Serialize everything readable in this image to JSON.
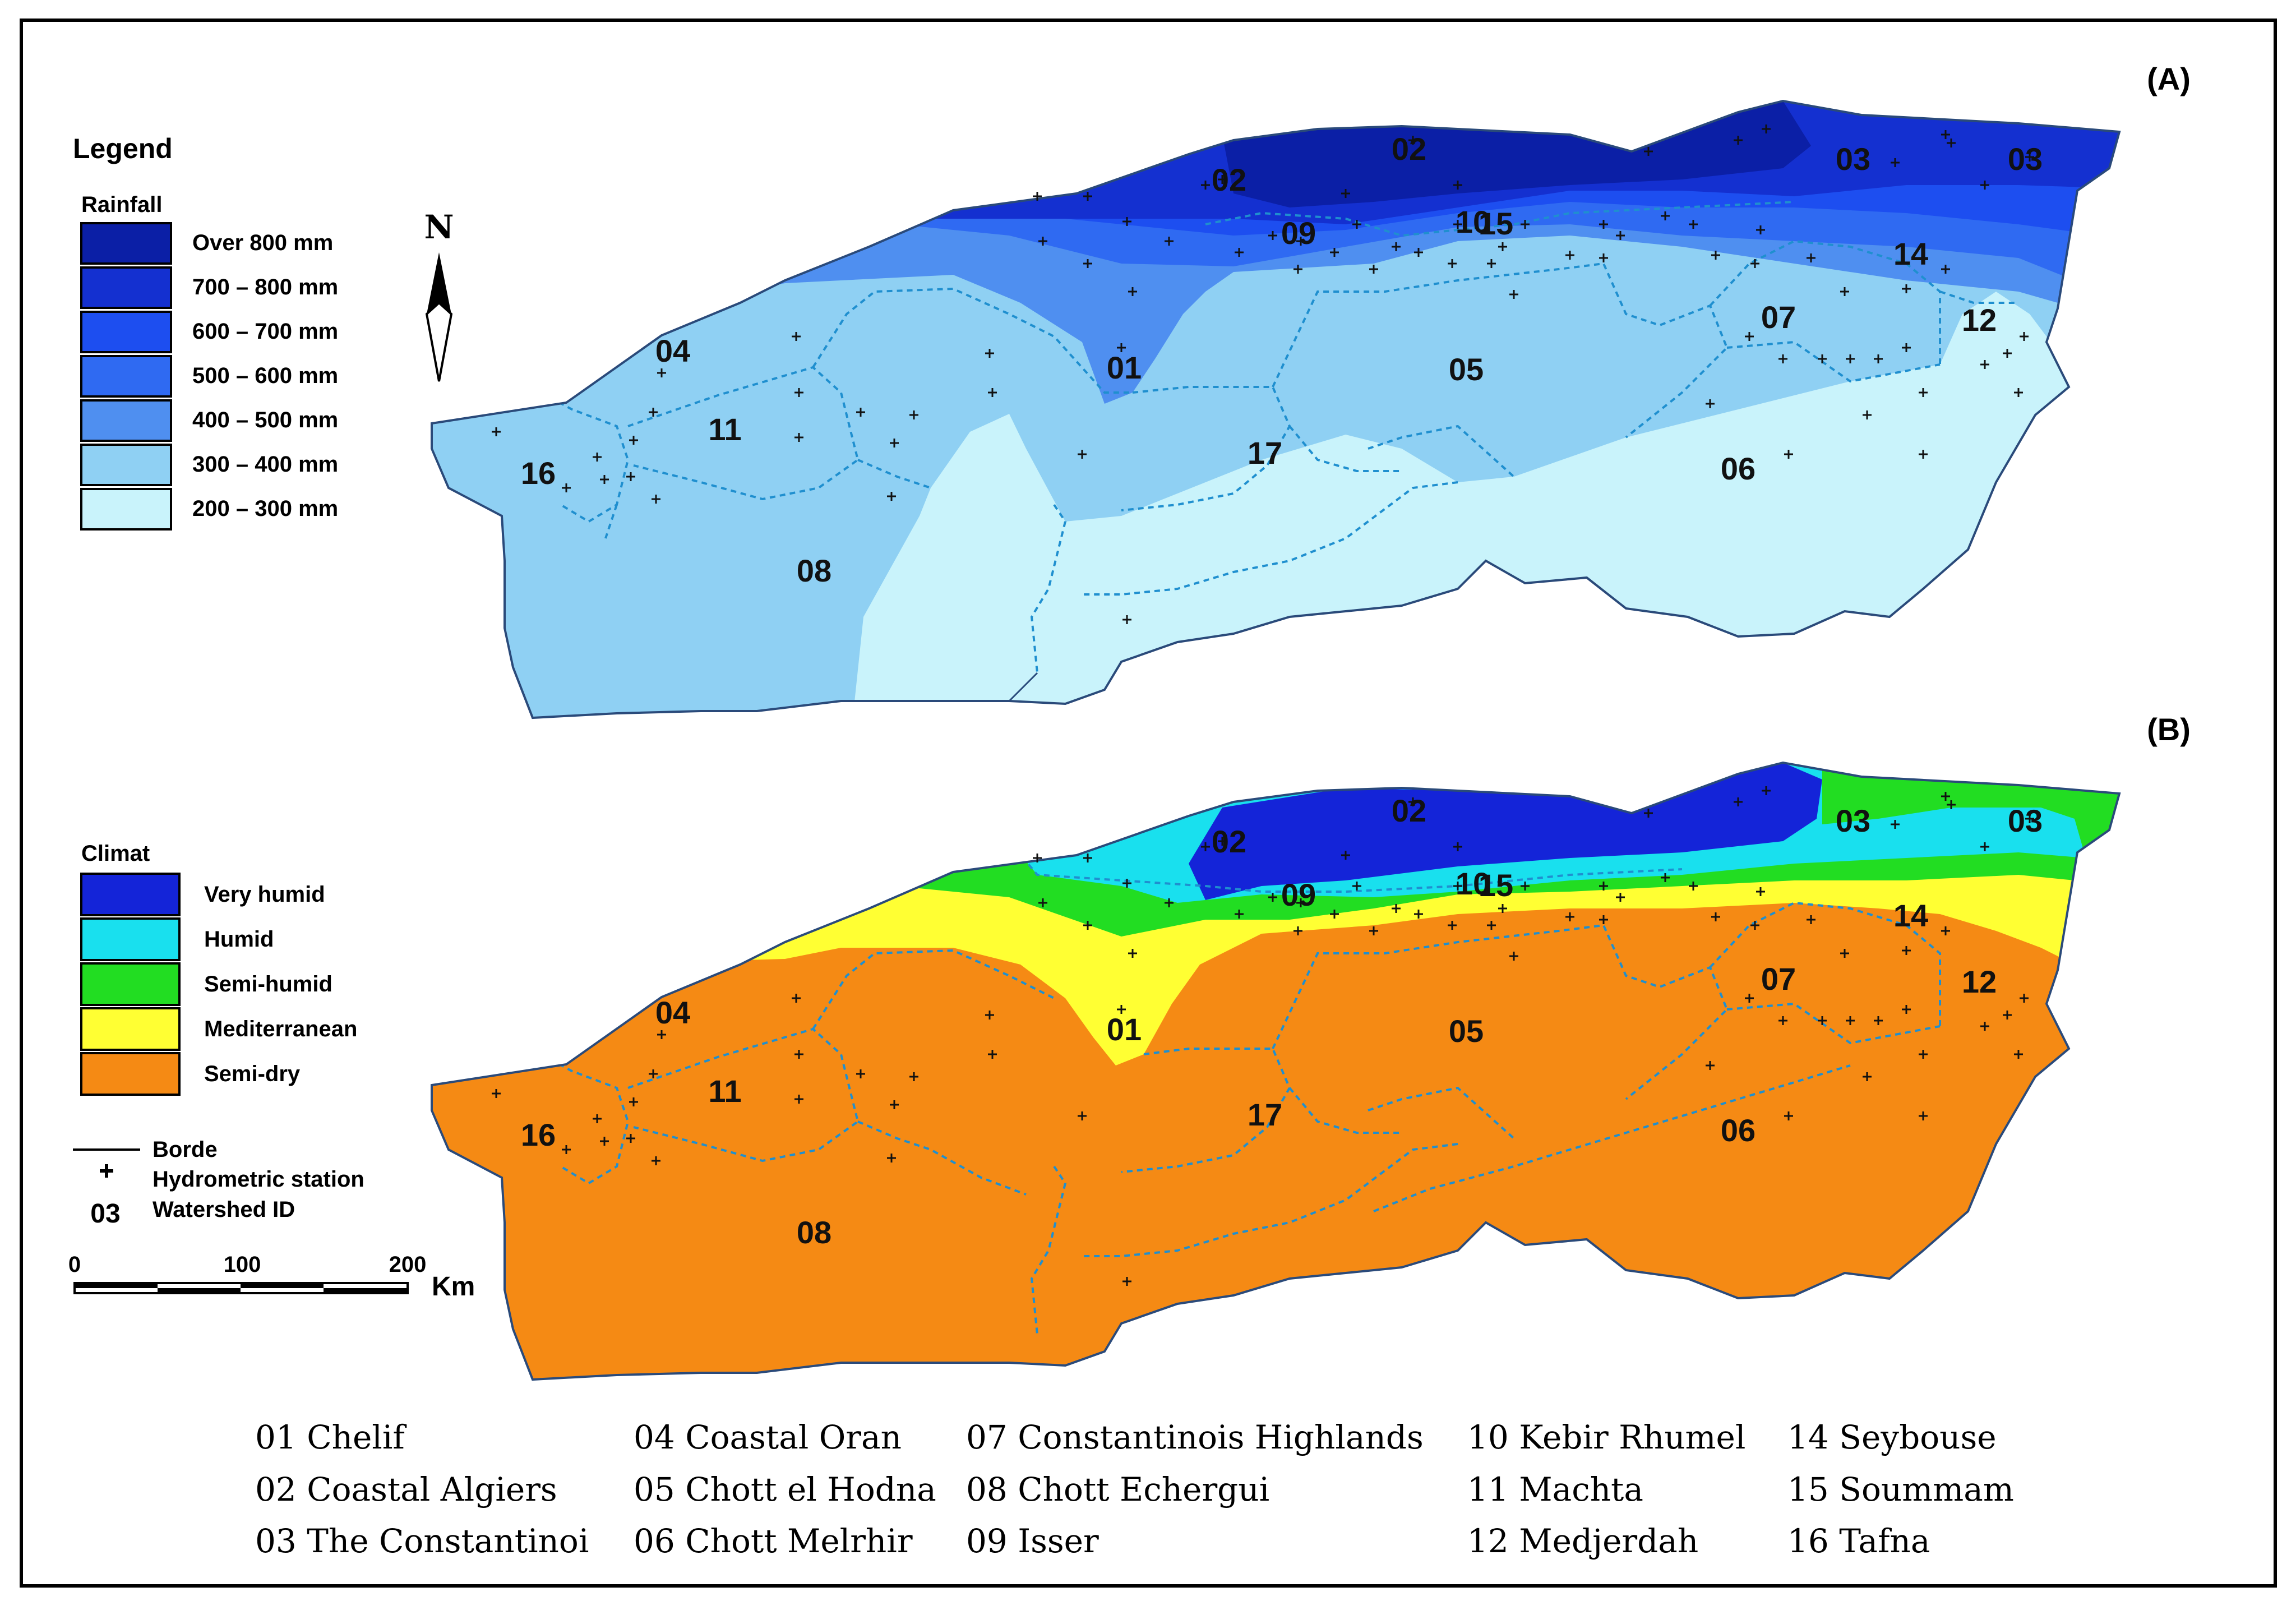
{
  "panels": {
    "a": {
      "label": "(A)"
    },
    "b": {
      "label": "(B)"
    }
  },
  "north_arrow": {
    "label": "N"
  },
  "rainfall_legend": {
    "heading": "Legend",
    "title": "Rainfall",
    "classes": [
      {
        "label": "Over 800 mm",
        "color": "#0b1fa6"
      },
      {
        "label": "700 – 800 mm",
        "color": "#1430d0"
      },
      {
        "label": "600 – 700 mm",
        "color": "#1d4ef0"
      },
      {
        "label": "500 – 600 mm",
        "color": "#2f6af2"
      },
      {
        "label": "400 – 500 mm",
        "color": "#4f8ff0"
      },
      {
        "label": "300 – 400 mm",
        "color": "#8fd0f3"
      },
      {
        "label": "200 – 300 mm",
        "color": "#c9f3fb"
      }
    ]
  },
  "climate_legend": {
    "title": "Climat",
    "classes": [
      {
        "label": "Very humid",
        "color": "#1424d8"
      },
      {
        "label": "Humid",
        "color": "#19e0ee"
      },
      {
        "label": "Semi-humid",
        "color": "#22dd22"
      },
      {
        "label": "Mediterranean",
        "color": "#ffff33"
      },
      {
        "label": "Semi-dry",
        "color": "#f58a14"
      }
    ]
  },
  "symbols": {
    "border": "Borde",
    "station": "Hydrometric station",
    "watershed_id_sample": "03",
    "watershed_id": "Watershed ID"
  },
  "scale_bar": {
    "ticks": [
      "0",
      "100",
      "200"
    ],
    "unit": "Km"
  },
  "map_a_ids": [
    "01",
    "02",
    "02",
    "03",
    "03",
    "04",
    "05",
    "06",
    "07",
    "08",
    "09",
    "10",
    "11",
    "12",
    "14",
    "15",
    "16",
    "17"
  ],
  "map_b_ids": [
    "01",
    "02",
    "02",
    "03",
    "03",
    "04",
    "05",
    "06",
    "07",
    "08",
    "09",
    "10",
    "11",
    "12",
    "14",
    "15",
    "16",
    "17"
  ],
  "watersheds": [
    "01 Chelif",
    "02 Coastal Algiers",
    "03 The Constantinoi",
    "04 Coastal Oran",
    "05 Chott el Hodna",
    "06 Chott Melrhir",
    "07 Constantinois Highlands",
    "08 Chott Echergui",
    "09 Isser",
    "10 Kebir Rhumel",
    "11 Machta",
    "12 Medjerdah",
    "14 Seybouse",
    "15 Soummam",
    "16 Tafna"
  ],
  "colors": {
    "frame": "#000000",
    "boundary": "#2a4a7a",
    "dotted": "#1f8fcf",
    "station": "#111111"
  }
}
